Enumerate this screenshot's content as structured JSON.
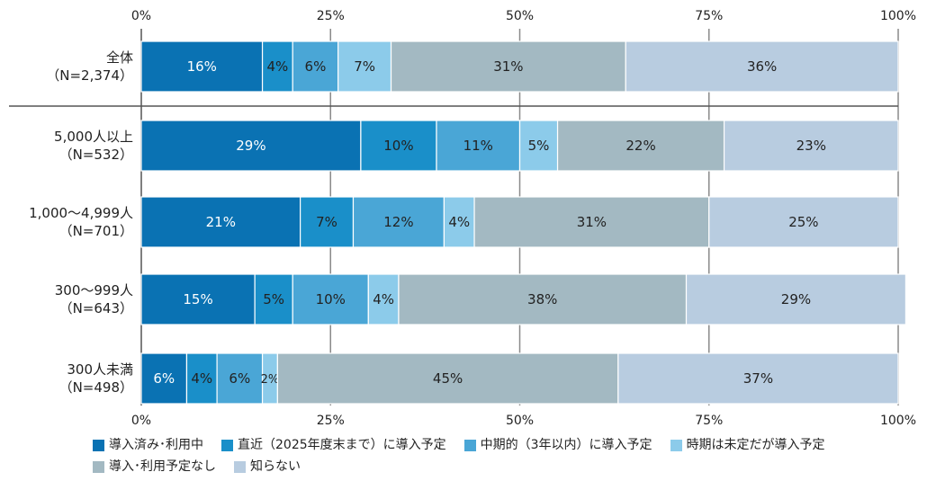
{
  "chart_data": {
    "type": "bar",
    "orientation": "horizontal",
    "stacked": true,
    "title": "",
    "xlabel": "",
    "ylabel": "",
    "xlim": [
      0,
      100
    ],
    "x_ticks": [
      "0%",
      "25%",
      "50%",
      "75%",
      "100%"
    ],
    "grid": true,
    "legend_position": "bottom",
    "categories": [
      [
        "全体",
        "（N=2,374）"
      ],
      [
        "5,000人以上",
        "（N=532）"
      ],
      [
        "1,000～4,999人",
        "（N=701）"
      ],
      [
        "300～999人",
        "（N=643）"
      ],
      [
        "300人未満",
        "（N=498）"
      ]
    ],
    "series": [
      {
        "name": "導入済み･利用中",
        "color": "#0a72b3",
        "text_color": "#ffffff",
        "values": [
          16,
          29,
          21,
          15,
          6
        ],
        "labels": [
          "16%",
          "29%",
          "21%",
          "15%",
          "6%"
        ]
      },
      {
        "name": "直近（2025年度末まで）に導入予定",
        "color": "#1a8fc9",
        "text_color": "#222222",
        "values": [
          4,
          10,
          7,
          5,
          4
        ],
        "labels": [
          "4%",
          "10%",
          "7%",
          "5%",
          "4%"
        ]
      },
      {
        "name": "中期的（3年以内）に導入予定",
        "color": "#4aa6d6",
        "text_color": "#222222",
        "values": [
          6,
          11,
          12,
          10,
          6
        ],
        "labels": [
          "6%",
          "11%",
          "12%",
          "10%",
          "6%"
        ]
      },
      {
        "name": "時期は未定だが導入予定",
        "color": "#8ccbea",
        "text_color": "#222222",
        "values": [
          7,
          5,
          4,
          4,
          2
        ],
        "labels": [
          "7%",
          "5%",
          "4%",
          "4%",
          "2%"
        ]
      },
      {
        "name": "導入･利用予定なし",
        "color": "#a3b9c2",
        "text_color": "#222222",
        "values": [
          31,
          22,
          31,
          38,
          45
        ],
        "labels": [
          "31%",
          "22%",
          "31%",
          "38%",
          "45%"
        ]
      },
      {
        "name": "知らない",
        "color": "#b8cce0",
        "text_color": "#222222",
        "values": [
          36,
          23,
          25,
          29,
          37
        ],
        "labels": [
          "36%",
          "23%",
          "25%",
          "29%",
          "37%"
        ]
      }
    ]
  }
}
